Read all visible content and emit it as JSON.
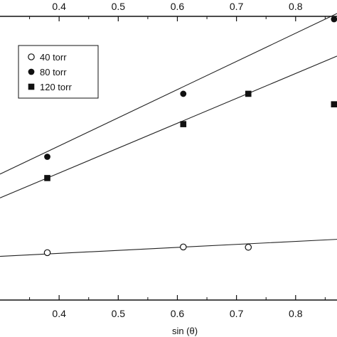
{
  "chart_data": {
    "type": "scatter",
    "xlabel": "sin (θ)",
    "ylabel": "",
    "xlim": [
      0.3,
      0.87
    ],
    "ylim": [
      0,
      10
    ],
    "x_ticks": [
      "0.4",
      "0.5",
      "0.6",
      "0.7",
      "0.8"
    ],
    "legend_placement": "top-left",
    "series": [
      {
        "name": "40 torr",
        "marker": "open-circle",
        "x": [
          0.38,
          0.61,
          0.72
        ],
        "y": [
          1.67,
          1.87,
          1.86
        ],
        "fit": {
          "x": [
            0.3,
            0.87
          ],
          "y": [
            1.54,
            2.14
          ]
        }
      },
      {
        "name": "80 torr",
        "marker": "filled-circle",
        "x": [
          0.38,
          0.61,
          0.865
        ],
        "y": [
          5.05,
          7.27,
          9.9
        ],
        "fit": {
          "x": [
            0.3,
            0.87
          ],
          "y": [
            4.44,
            10.1
          ]
        }
      },
      {
        "name": "120 torr",
        "marker": "filled-square",
        "x": [
          0.38,
          0.61,
          0.72,
          0.865
        ],
        "y": [
          4.3,
          6.2,
          7.27,
          6.9
        ],
        "fit": {
          "x": [
            0.3,
            0.87
          ],
          "y": [
            3.6,
            8.6
          ]
        }
      }
    ]
  }
}
